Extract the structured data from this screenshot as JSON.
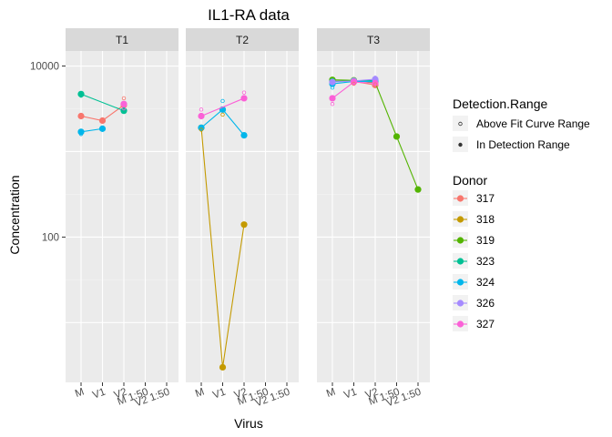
{
  "chart_data": {
    "type": "line",
    "title": "IL1-RA data",
    "xlabel": "Virus",
    "ylabel": "Concentration",
    "y_scale": "log10",
    "ylim": [
      2,
      15000
    ],
    "y_ticks": [
      100,
      10000
    ],
    "y_tick_labels": [
      "100",
      "10000"
    ],
    "categories": [
      "M",
      "V1",
      "V2",
      "M 1:50",
      "V2 1:50"
    ],
    "panels": [
      "T1",
      "T2",
      "T3"
    ],
    "legends": {
      "detection_range": {
        "title": "Detection.Range",
        "items": [
          "Above Fit Curve Range",
          "In Detection Range"
        ]
      },
      "donor": {
        "title": "Donor",
        "items": [
          "317",
          "318",
          "319",
          "323",
          "324",
          "326",
          "327"
        ]
      }
    },
    "colors": {
      "317": "#F8766D",
      "318": "#C49A00",
      "319": "#53B400",
      "323": "#00C094",
      "324": "#00B6EB",
      "326": "#A58AFF",
      "327": "#FB61D7"
    },
    "series": [
      {
        "panel": "T1",
        "name": "317",
        "points": [
          [
            "M",
            2600
          ],
          [
            "V1",
            2300
          ],
          [
            "V2",
            3500
          ]
        ]
      },
      {
        "panel": "T1",
        "name": "323",
        "points": [
          [
            "M",
            4700
          ],
          [
            "V2",
            3000
          ]
        ]
      },
      {
        "panel": "T1",
        "name": "324",
        "points": [
          [
            "M",
            1700
          ],
          [
            "V1",
            1850
          ]
        ]
      },
      {
        "panel": "T1",
        "name": "327",
        "points": [
          [
            "V2",
            3600
          ]
        ]
      },
      {
        "panel": "T2",
        "name": "318",
        "points": [
          [
            "M",
            1900
          ],
          [
            "V1",
            3
          ],
          [
            "V2",
            140
          ]
        ]
      },
      {
        "panel": "T2",
        "name": "324",
        "points": [
          [
            "M",
            1900
          ],
          [
            "V1",
            3100
          ],
          [
            "V2",
            1550
          ]
        ]
      },
      {
        "panel": "T2",
        "name": "327",
        "points": [
          [
            "M",
            2600
          ],
          [
            "V2",
            4200
          ]
        ]
      },
      {
        "panel": "T3",
        "name": "317",
        "points": [
          [
            "M",
            6700
          ],
          [
            "V1",
            6600
          ],
          [
            "V2",
            6000
          ]
        ]
      },
      {
        "panel": "T3",
        "name": "319",
        "points": [
          [
            "M",
            6900
          ],
          [
            "V1",
            6800
          ],
          [
            "V2",
            6400
          ],
          [
            "M 1:50",
            1500
          ],
          [
            "V2 1:50",
            360
          ]
        ]
      },
      {
        "panel": "T3",
        "name": "323",
        "points": [
          [
            "M",
            6600
          ],
          [
            "V1",
            6700
          ],
          [
            "V2",
            6800
          ]
        ]
      },
      {
        "panel": "T3",
        "name": "324",
        "points": [
          [
            "M",
            6200
          ],
          [
            "V1",
            6600
          ],
          [
            "V2",
            6600
          ]
        ]
      },
      {
        "panel": "T3",
        "name": "326",
        "points": [
          [
            "M",
            6500
          ],
          [
            "V1",
            6700
          ],
          [
            "V2",
            7000
          ]
        ]
      },
      {
        "panel": "T3",
        "name": "327",
        "points": [
          [
            "M",
            4200
          ],
          [
            "V1",
            6500
          ],
          [
            "V2",
            6300
          ]
        ]
      }
    ],
    "above_fit_points": [
      {
        "panel": "T1",
        "x": "M",
        "y": 4500,
        "donor": "323"
      },
      {
        "panel": "T1",
        "x": "M",
        "y": 1600,
        "donor": "324"
      },
      {
        "panel": "T1",
        "x": "V2",
        "y": 4200,
        "donor": "317"
      },
      {
        "panel": "T1",
        "x": "V2",
        "y": 3200,
        "donor": "327"
      },
      {
        "panel": "T2",
        "x": "M",
        "y": 3100,
        "donor": "327"
      },
      {
        "panel": "T2",
        "x": "M",
        "y": 1800,
        "donor": "318"
      },
      {
        "panel": "T2",
        "x": "V1",
        "y": 3900,
        "donor": "324"
      },
      {
        "panel": "T2",
        "x": "V1",
        "y": 2700,
        "donor": "318"
      },
      {
        "panel": "T2",
        "x": "V2",
        "y": 4900,
        "donor": "327"
      },
      {
        "panel": "T3",
        "x": "M",
        "y": 5600,
        "donor": "324"
      },
      {
        "panel": "T3",
        "x": "M",
        "y": 3600,
        "donor": "327"
      },
      {
        "panel": "T3",
        "x": "V1",
        "y": 6200,
        "donor": "317"
      },
      {
        "panel": "T3",
        "x": "V2",
        "y": 7300,
        "donor": "326"
      },
      {
        "panel": "T3",
        "x": "V2",
        "y": 6100,
        "donor": "317"
      }
    ],
    "grid": true,
    "legend_position": "right"
  }
}
